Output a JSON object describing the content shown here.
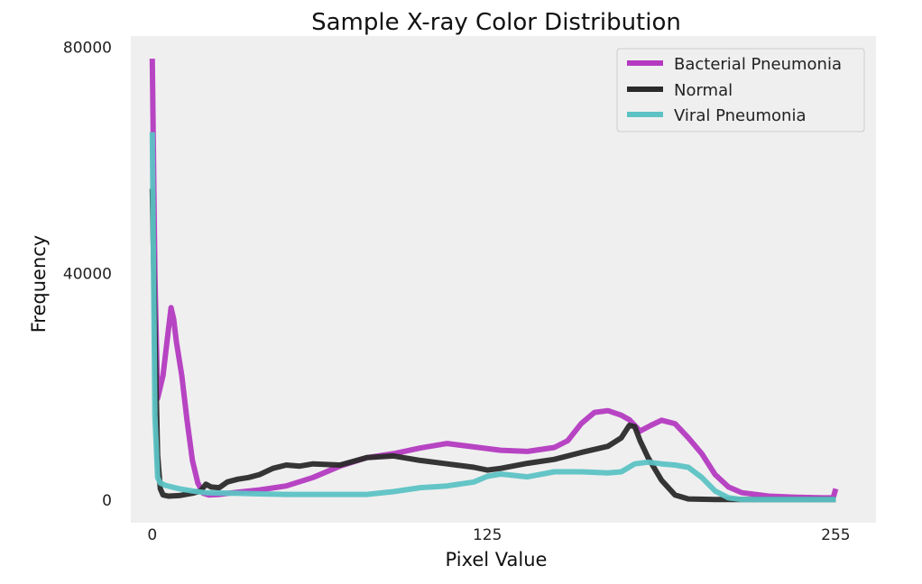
{
  "chart_data": {
    "type": "line",
    "title": "Sample X-ray Color Distribution",
    "xlabel": "Pixel Value",
    "ylabel": "Frequency",
    "xlim": [
      -8,
      270
    ],
    "ylim": [
      -4000,
      82000
    ],
    "xticks": [
      0,
      125,
      255
    ],
    "yticks": [
      0,
      40000,
      80000
    ],
    "grid": false,
    "legend_position": "top-right",
    "background": "#efefef",
    "series": [
      {
        "name": "Bacterial Pneumonia",
        "color": "#b33ac0",
        "points": [
          [
            0,
            78000
          ],
          [
            1,
            40000
          ],
          [
            2,
            18000
          ],
          [
            4,
            22000
          ],
          [
            6,
            30000
          ],
          [
            7,
            34000
          ],
          [
            8,
            32000
          ],
          [
            9,
            28000
          ],
          [
            11,
            22000
          ],
          [
            13,
            14000
          ],
          [
            15,
            7000
          ],
          [
            17,
            3000
          ],
          [
            19,
            1200
          ],
          [
            21,
            900
          ],
          [
            25,
            1000
          ],
          [
            30,
            1300
          ],
          [
            40,
            1800
          ],
          [
            50,
            2500
          ],
          [
            60,
            4000
          ],
          [
            70,
            6000
          ],
          [
            80,
            7500
          ],
          [
            90,
            8200
          ],
          [
            100,
            9200
          ],
          [
            110,
            10000
          ],
          [
            120,
            9400
          ],
          [
            130,
            8800
          ],
          [
            140,
            8600
          ],
          [
            150,
            9300
          ],
          [
            155,
            10500
          ],
          [
            160,
            13500
          ],
          [
            165,
            15500
          ],
          [
            170,
            15800
          ],
          [
            175,
            15000
          ],
          [
            178,
            14200
          ],
          [
            182,
            12200
          ],
          [
            186,
            13200
          ],
          [
            190,
            14100
          ],
          [
            195,
            13500
          ],
          [
            200,
            11000
          ],
          [
            205,
            8200
          ],
          [
            210,
            4500
          ],
          [
            215,
            2300
          ],
          [
            220,
            1300
          ],
          [
            230,
            700
          ],
          [
            240,
            500
          ],
          [
            250,
            400
          ],
          [
            254,
            400
          ],
          [
            255,
            2000
          ]
        ]
      },
      {
        "name": "Normal",
        "color": "#2a2a2a",
        "points": [
          [
            0,
            55000
          ],
          [
            1,
            30000
          ],
          [
            2,
            8000
          ],
          [
            3,
            2000
          ],
          [
            4,
            900
          ],
          [
            6,
            700
          ],
          [
            10,
            800
          ],
          [
            15,
            1200
          ],
          [
            18,
            1600
          ],
          [
            20,
            2800
          ],
          [
            22,
            2300
          ],
          [
            25,
            2200
          ],
          [
            28,
            3200
          ],
          [
            32,
            3700
          ],
          [
            36,
            4000
          ],
          [
            40,
            4500
          ],
          [
            45,
            5600
          ],
          [
            50,
            6200
          ],
          [
            55,
            6000
          ],
          [
            60,
            6400
          ],
          [
            70,
            6200
          ],
          [
            80,
            7500
          ],
          [
            90,
            7800
          ],
          [
            100,
            7000
          ],
          [
            110,
            6400
          ],
          [
            120,
            5800
          ],
          [
            125,
            5300
          ],
          [
            130,
            5600
          ],
          [
            140,
            6500
          ],
          [
            150,
            7200
          ],
          [
            160,
            8400
          ],
          [
            170,
            9500
          ],
          [
            175,
            11000
          ],
          [
            178,
            13200
          ],
          [
            180,
            13000
          ],
          [
            182,
            10500
          ],
          [
            185,
            7500
          ],
          [
            190,
            3500
          ],
          [
            195,
            900
          ],
          [
            200,
            200
          ],
          [
            210,
            100
          ],
          [
            255,
            100
          ]
        ]
      },
      {
        "name": "Viral Pneumonia",
        "color": "#5cc2c4",
        "points": [
          [
            0,
            65000
          ],
          [
            1,
            15000
          ],
          [
            2,
            4000
          ],
          [
            3,
            3000
          ],
          [
            5,
            2600
          ],
          [
            10,
            2000
          ],
          [
            15,
            1600
          ],
          [
            20,
            1300
          ],
          [
            30,
            1200
          ],
          [
            40,
            1100
          ],
          [
            50,
            1000
          ],
          [
            60,
            1000
          ],
          [
            70,
            1000
          ],
          [
            80,
            1000
          ],
          [
            90,
            1500
          ],
          [
            100,
            2200
          ],
          [
            110,
            2500
          ],
          [
            120,
            3200
          ],
          [
            125,
            4200
          ],
          [
            130,
            4600
          ],
          [
            140,
            4100
          ],
          [
            150,
            5000
          ],
          [
            160,
            5000
          ],
          [
            170,
            4800
          ],
          [
            175,
            5000
          ],
          [
            180,
            6400
          ],
          [
            185,
            6700
          ],
          [
            190,
            6400
          ],
          [
            195,
            6200
          ],
          [
            200,
            5800
          ],
          [
            205,
            4000
          ],
          [
            210,
            1600
          ],
          [
            215,
            400
          ],
          [
            220,
            100
          ],
          [
            255,
            100
          ]
        ]
      }
    ]
  }
}
